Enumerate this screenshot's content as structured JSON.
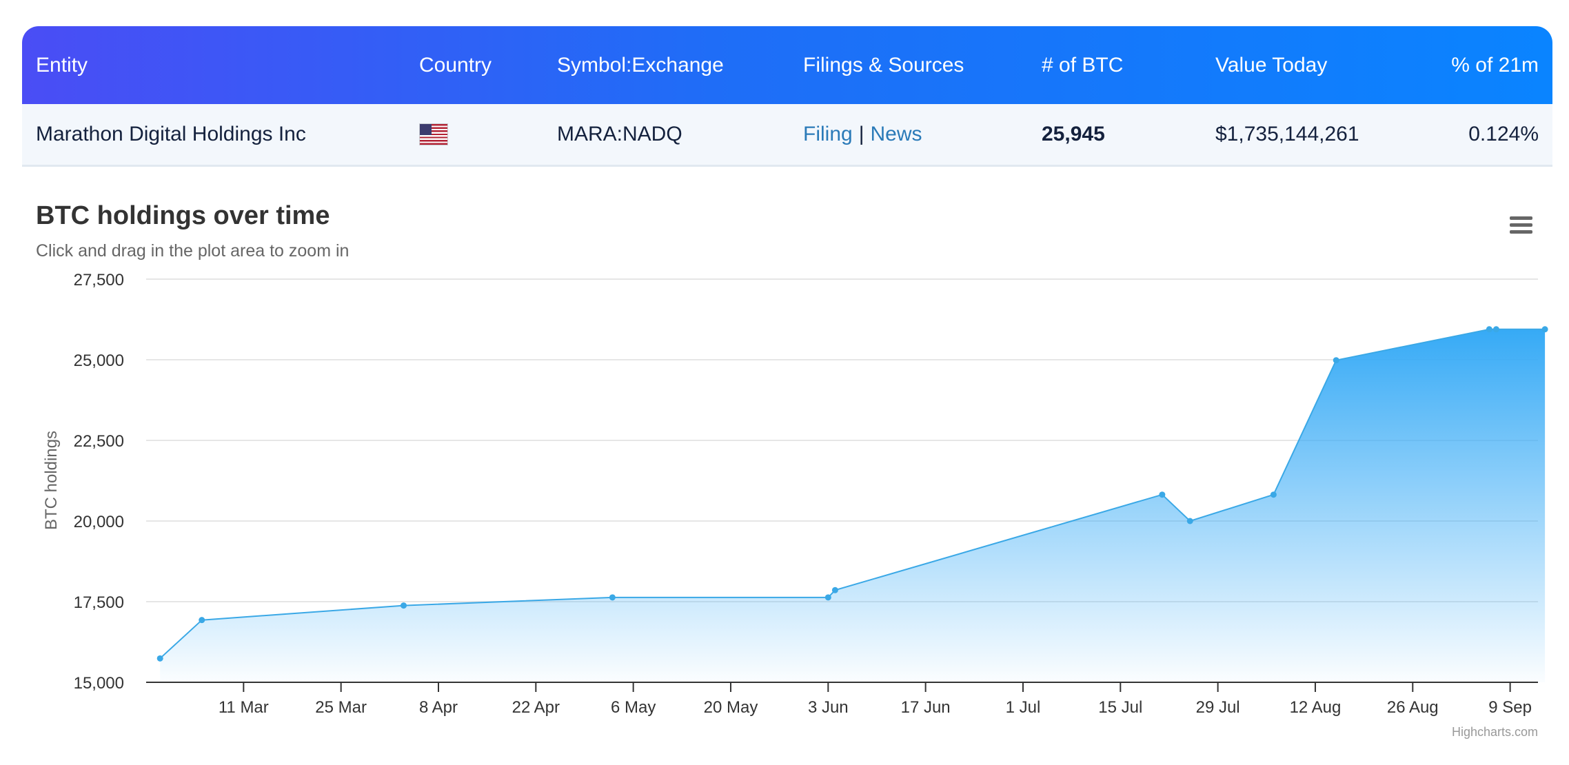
{
  "table": {
    "headers": {
      "entity": "Entity",
      "country": "Country",
      "symbol": "Symbol:Exchange",
      "filings": "Filings & Sources",
      "btc": "# of BTC",
      "value": "Value Today",
      "pct": "% of 21m"
    },
    "row": {
      "entity": "Marathon Digital Holdings Inc",
      "country_flag": "us-flag-icon",
      "symbol": "MARA:NADQ",
      "filing_link": "Filing",
      "separator": "|",
      "news_link": "News",
      "btc": "25,945",
      "value": "$1,735,144,261",
      "pct": "0.124%"
    }
  },
  "menu_icon": "hamburger-menu-icon",
  "credits": "Highcharts.com",
  "colors": {
    "header_gradient_start": "#4a4df5",
    "header_gradient_end": "#0a84ff",
    "link": "#2a7ab8",
    "series_line": "#3aa8e6",
    "area_top": "#36aaf6"
  },
  "chart_data": {
    "type": "area",
    "title": "BTC holdings over time",
    "subtitle": "Click and drag in the plot area to zoom in",
    "ylabel": "BTC holdings",
    "xlabel": "",
    "ylim": [
      15000,
      27500
    ],
    "xlim": [
      "2024-02-26",
      "2024-09-13"
    ],
    "yticks": [
      15000,
      17500,
      20000,
      22500,
      25000,
      27500
    ],
    "ytick_labels": [
      "15,000",
      "17,500",
      "20,000",
      "22,500",
      "25,000",
      "27,500"
    ],
    "xticks": [
      "2024-03-11",
      "2024-03-25",
      "2024-04-08",
      "2024-04-22",
      "2024-05-06",
      "2024-05-20",
      "2024-06-03",
      "2024-06-17",
      "2024-07-01",
      "2024-07-15",
      "2024-07-29",
      "2024-08-12",
      "2024-08-26",
      "2024-09-09"
    ],
    "xtick_labels": [
      "11 Mar",
      "25 Mar",
      "8 Apr",
      "22 Apr",
      "6 May",
      "20 May",
      "3 Jun",
      "17 Jun",
      "1 Jul",
      "15 Jul",
      "29 Jul",
      "12 Aug",
      "26 Aug",
      "9 Sep"
    ],
    "grid": true,
    "legend": "none",
    "series": [
      {
        "x": [
          "2024-02-28",
          "2024-03-05",
          "2024-04-03",
          "2024-05-03",
          "2024-06-03",
          "2024-06-04",
          "2024-07-21",
          "2024-07-25",
          "2024-08-06",
          "2024-08-15",
          "2024-09-06",
          "2024-09-07",
          "2024-09-14"
        ],
        "y": [
          15741,
          16930,
          17381,
          17631,
          17631,
          17857,
          20818,
          20000,
          20818,
          24985,
          25945,
          25945,
          25945
        ]
      }
    ]
  }
}
